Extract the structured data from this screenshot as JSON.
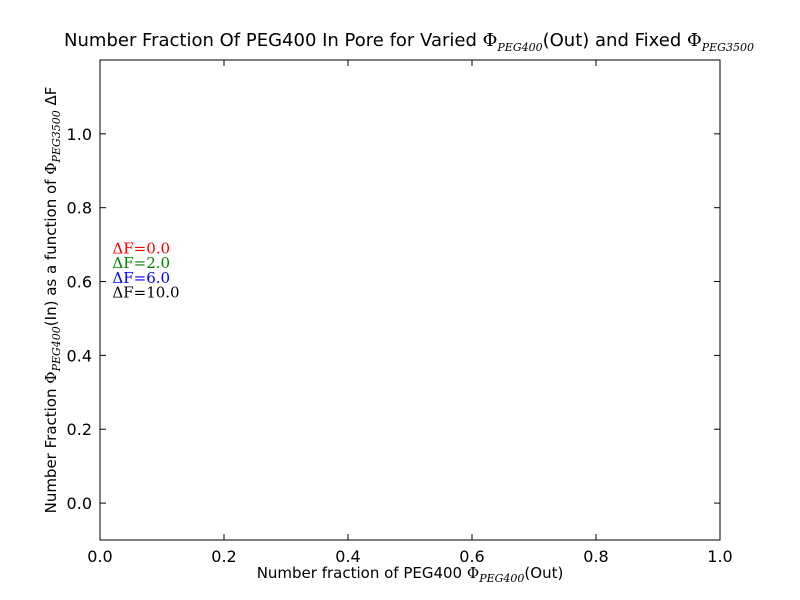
{
  "chart_data": {
    "type": "line",
    "title": {
      "prefix": "Number Fraction Of PEG400 In Pore for Varied ",
      "sym1": "Φ",
      "sub1": "PEG400",
      "mid": "(Out) and Fixed ",
      "sym2": "Φ",
      "sub2": "PEG3500"
    },
    "xlabel": {
      "prefix": "Number fraction of PEG400 ",
      "sym": "Φ",
      "sub": "PEG400",
      "suffix": "(Out)"
    },
    "ylabel": {
      "prefix": "Number Fraction ",
      "sym1": "Φ",
      "sub1": "PEG400",
      "mid": "(In) as a function of ",
      "sym2": "Φ",
      "sub2": "PEG3500",
      "suffix": " ΔF"
    },
    "xlim": [
      0.0,
      1.0
    ],
    "ylim": [
      -0.1,
      1.2
    ],
    "xticks": [
      "0.0",
      "0.2",
      "0.4",
      "0.6",
      "0.8",
      "1.0"
    ],
    "yticks": [
      "0.0",
      "0.2",
      "0.4",
      "0.6",
      "0.8",
      "1.0"
    ],
    "grid": false,
    "series": [],
    "annotations": [
      {
        "text": "ΔF=0.0",
        "color": "#ff0000",
        "x": 0.02,
        "y": 0.69
      },
      {
        "text": "ΔF=2.0",
        "color": "#008000",
        "x": 0.02,
        "y": 0.65
      },
      {
        "text": "ΔF=6.0",
        "color": "#0000ff",
        "x": 0.02,
        "y": 0.61
      },
      {
        "text": "ΔF=10.0",
        "color": "#000000",
        "x": 0.02,
        "y": 0.57
      }
    ]
  }
}
